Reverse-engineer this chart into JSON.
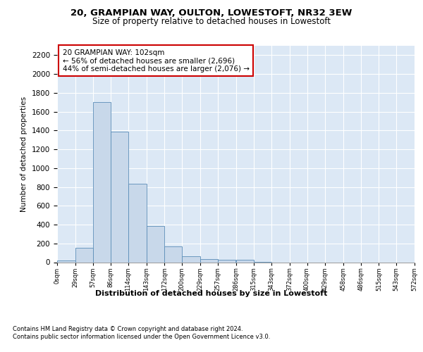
{
  "title1": "20, GRAMPIAN WAY, OULTON, LOWESTOFT, NR32 3EW",
  "title2": "Size of property relative to detached houses in Lowestoft",
  "xlabel": "Distribution of detached houses by size in Lowestoft",
  "ylabel": "Number of detached properties",
  "bar_color": "#c8d8ea",
  "bar_edge_color": "#5b8db8",
  "background_color": "#dce8f5",
  "grid_color": "#ffffff",
  "bin_labels": [
    "0sqm",
    "29sqm",
    "57sqm",
    "86sqm",
    "114sqm",
    "143sqm",
    "172sqm",
    "200sqm",
    "229sqm",
    "257sqm",
    "286sqm",
    "315sqm",
    "343sqm",
    "372sqm",
    "400sqm",
    "429sqm",
    "458sqm",
    "486sqm",
    "515sqm",
    "543sqm",
    "572sqm"
  ],
  "bar_values": [
    15,
    155,
    1700,
    1390,
    835,
    385,
    165,
    65,
    35,
    28,
    28,
    5,
    0,
    0,
    0,
    0,
    0,
    0,
    0,
    0
  ],
  "ylim": [
    0,
    2300
  ],
  "yticks": [
    0,
    200,
    400,
    600,
    800,
    1000,
    1200,
    1400,
    1600,
    1800,
    2000,
    2200
  ],
  "bin_edges": [
    0,
    29,
    57,
    86,
    114,
    143,
    172,
    200,
    229,
    257,
    286,
    315,
    343,
    372,
    400,
    429,
    458,
    486,
    515,
    543,
    572
  ],
  "box_text_line1": "20 GRAMPIAN WAY: 102sqm",
  "box_text_line2": "← 56% of detached houses are smaller (2,696)",
  "box_text_line3": "44% of semi-detached houses are larger (2,076) →",
  "footer1": "Contains HM Land Registry data © Crown copyright and database right 2024.",
  "footer2": "Contains public sector information licensed under the Open Government Licence v3.0.",
  "vline_color": "#333333",
  "box_edge_color": "#cc0000"
}
